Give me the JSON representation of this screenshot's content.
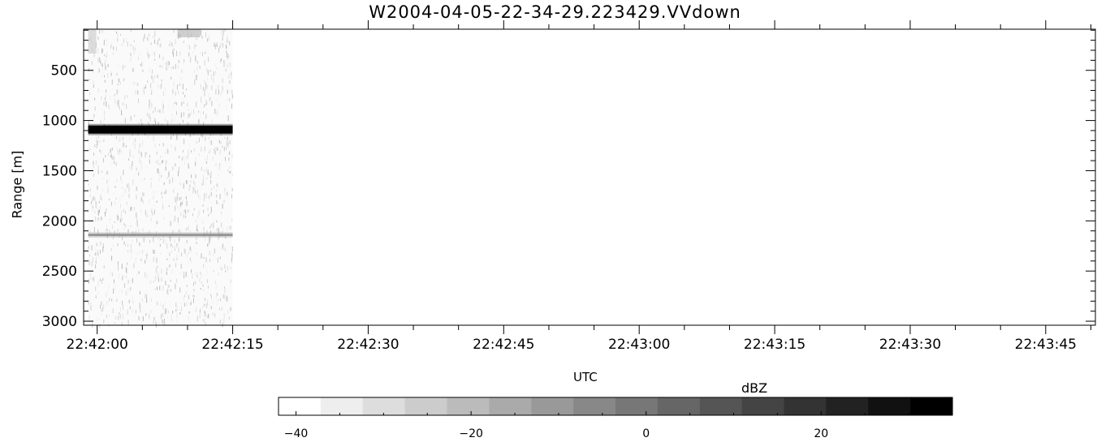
{
  "chart_data": {
    "type": "heatmap",
    "title": "W2004-04-05-22-34-29.223429.VVdown",
    "xlabel": "UTC",
    "ylabel": "Range [m]",
    "x_ticks": [
      "22:42:00",
      "22:42:15",
      "22:42:30",
      "22:42:45",
      "22:43:00",
      "22:43:15",
      "22:43:30",
      "22:43:45"
    ],
    "y_ticks": [
      500,
      1000,
      1500,
      2000,
      2500,
      3000
    ],
    "y_range": [
      90,
      3040
    ],
    "y_inverted": true,
    "x_range_seconds_after_22_42_00": [
      -1.5,
      110.5
    ],
    "data_extent": {
      "x_start": "22:41:59",
      "x_end": "22:42:15",
      "y_start": 90,
      "y_end": 3040
    },
    "features": [
      {
        "description": "strong return band",
        "range_m": [
          1050,
          1130
        ],
        "dbz": 35
      },
      {
        "description": "weak return line",
        "range_m": [
          2130,
          2150
        ],
        "dbz": -8
      },
      {
        "description": "noise speckle background",
        "dbz": -38
      }
    ],
    "colorbar": {
      "label": "dBZ",
      "colormap": "grayscale (white to black)",
      "range": [
        -42,
        35
      ],
      "ticks": [
        -40,
        -20,
        0,
        20
      ],
      "levels": 16
    }
  }
}
